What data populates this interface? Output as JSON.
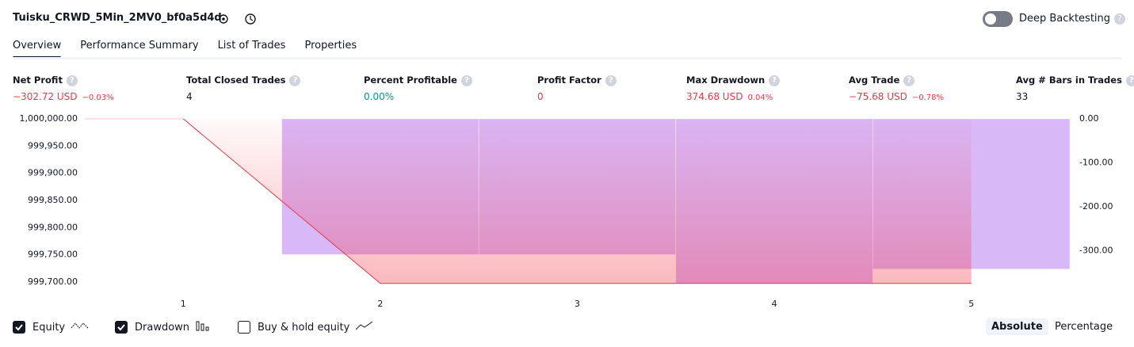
{
  "header": {
    "title": "Tuisku_CRWD_5Min_2MV0_bf0a5d4d",
    "toggle_label": "Deep Backtesting",
    "toggle_on": false
  },
  "tabs": {
    "items": [
      "Overview",
      "Performance Summary",
      "List of Trades",
      "Properties"
    ],
    "active": 0
  },
  "stats": [
    {
      "label": "Net Profit",
      "value": "−302.72 USD",
      "percent": "−0.03%",
      "color": "#f23645"
    },
    {
      "label": "Total Closed Trades",
      "value": "4",
      "color": "#131722"
    },
    {
      "label": "Percent Profitable",
      "value": "0.00%",
      "color": "#089981"
    },
    {
      "label": "Profit Factor",
      "value": "0",
      "color": "#f23645"
    },
    {
      "label": "Max Drawdown",
      "value": "374.68 USD",
      "percent": "0.04%",
      "color": "#f23645"
    },
    {
      "label": "Avg Trade",
      "value": "−75.68 USD",
      "percent": "−0.78%",
      "color": "#f23645"
    },
    {
      "label": "Avg # Bars in Trades",
      "value": "33",
      "color": "#131722"
    }
  ],
  "chart_data": {
    "type": "combo",
    "x": [
      1,
      2,
      3,
      4,
      5
    ],
    "xlim": [
      0.5,
      5.5
    ],
    "xticks": [
      1,
      2,
      3,
      4,
      5
    ],
    "ylim": [
      999697,
      1000000
    ],
    "yticks": [
      {
        "value": 1000000,
        "label": "1,000,000.00"
      },
      {
        "value": 999950,
        "label": "999,950.00"
      },
      {
        "value": 999900,
        "label": "999,900.00"
      },
      {
        "value": 999850,
        "label": "999,850.00"
      },
      {
        "value": 999800,
        "label": "999,800.00"
      },
      {
        "value": 999750,
        "label": "999,750.00"
      },
      {
        "value": 999700,
        "label": "999,700.00"
      }
    ],
    "y2lim": [
      -375,
      0
    ],
    "y2ticks": [
      {
        "value": 0,
        "label": "0.00"
      },
      {
        "value": -100,
        "label": "-100.00"
      },
      {
        "value": -200,
        "label": "-200.00"
      },
      {
        "value": -300,
        "label": "-300.00"
      }
    ],
    "grid": false,
    "series": [
      {
        "name": "Equity",
        "type": "area",
        "color": "#f23645",
        "values": [
          1000000,
          999697.28,
          999697.28,
          999697.28,
          999697.28
        ]
      },
      {
        "name": "Drawdown",
        "type": "bar",
        "axis": "y2",
        "color": "#d9b8f8",
        "values": [
          null,
          -309,
          -309,
          -374.68,
          -342
        ]
      }
    ]
  },
  "legend_toggles": [
    {
      "label": "Equity",
      "checked": true
    },
    {
      "label": "Drawdown",
      "checked": true
    },
    {
      "label": "Buy & hold equity",
      "checked": false
    }
  ],
  "modes": {
    "items": [
      "Absolute",
      "Percentage"
    ],
    "active": 0
  }
}
